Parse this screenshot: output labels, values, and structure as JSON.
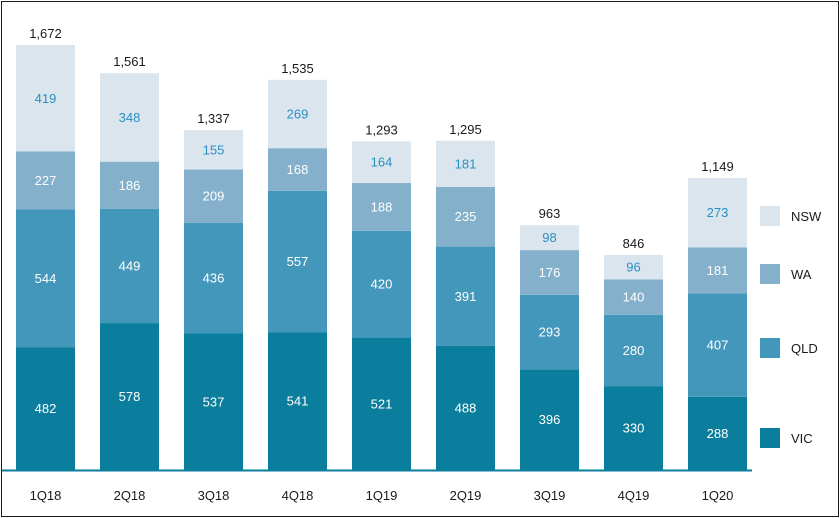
{
  "chart_data": {
    "type": "bar",
    "stacked": true,
    "title": "",
    "xlabel": "",
    "ylabel": "",
    "categories": [
      "1Q18",
      "2Q18",
      "3Q18",
      "4Q18",
      "1Q19",
      "2Q19",
      "3Q19",
      "4Q19",
      "1Q20"
    ],
    "series": [
      {
        "name": "VIC",
        "color": "#0a7e9c",
        "label_color": "#ffffff",
        "values": [
          482,
          578,
          537,
          541,
          521,
          488,
          396,
          330,
          288
        ]
      },
      {
        "name": "QLD",
        "color": "#4397bb",
        "label_color": "#ffffff",
        "values": [
          544,
          449,
          436,
          557,
          420,
          391,
          293,
          280,
          407
        ]
      },
      {
        "name": "WA",
        "color": "#84b0cc",
        "label_color": "#ffffff",
        "values": [
          227,
          186,
          209,
          168,
          188,
          235,
          176,
          140,
          181
        ]
      },
      {
        "name": "NSW",
        "color": "#dbe5ee",
        "label_color": "#2b8fc0",
        "values": [
          419,
          348,
          155,
          269,
          164,
          181,
          98,
          96,
          273
        ]
      }
    ],
    "totals": [
      "1,672",
      "1,561",
      "1,337",
      "1,535",
      "1,293",
      "1,295",
      "963",
      "846",
      "1,149"
    ],
    "ylim": [
      0,
      1672
    ],
    "legend_position": "right",
    "grid": false,
    "baseline_color": "#0a7e9c"
  }
}
